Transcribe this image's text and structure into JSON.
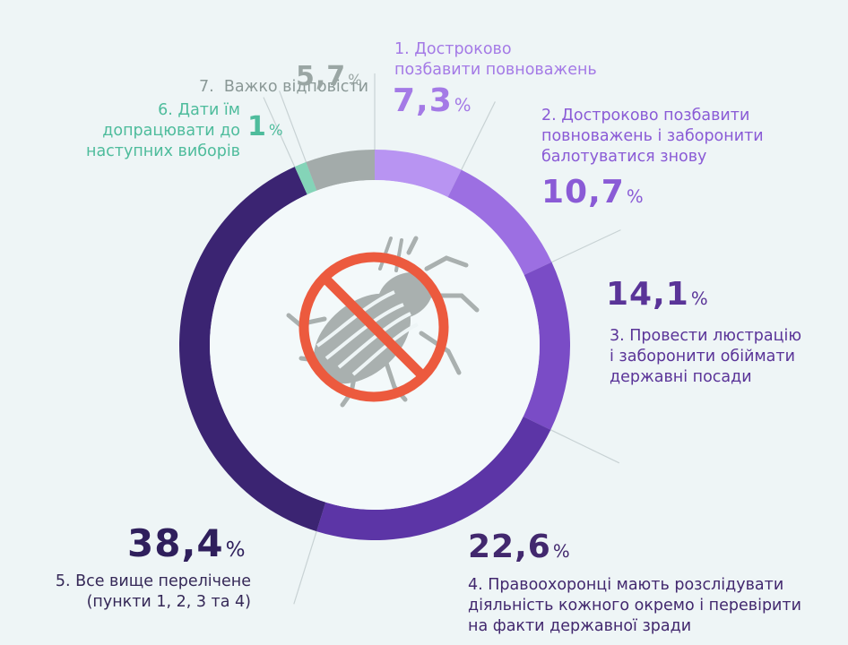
{
  "chart_data": {
    "type": "pie",
    "slices": [
      {
        "label_lines": [
          "1. Достроково",
          "позбавити повноважень"
        ],
        "value_text": "7,3",
        "value": 7.3,
        "color": "#b894f2",
        "label_color": "#a47ae6",
        "value_color": "#a47ae6"
      },
      {
        "label_lines": [
          "2. Достроково позбавити",
          "повноважень і заборонити",
          "балотуватися знову"
        ],
        "value_text": "10,7",
        "value": 10.7,
        "color": "#9c6fe2",
        "label_color": "#8a5bd6",
        "value_color": "#8a5bd6"
      },
      {
        "label_lines": [
          "3. Провести люстрацію",
          "і заборонити обіймати",
          "державні посади"
        ],
        "value_text": "14,1",
        "value": 14.1,
        "color": "#7a4cc6",
        "label_color": "#5a3498",
        "value_color": "#5a3498"
      },
      {
        "label_lines": [
          "4. Правоохоронці мають розслідувати",
          "діяльність кожного окремо і перевірити",
          "на факти державної зради"
        ],
        "value_text": "22,6",
        "value": 22.6,
        "color": "#5c35a6",
        "label_color": "#42286e",
        "value_color": "#42286e"
      },
      {
        "label_lines": [
          "5. Все вище перелічене",
          "(пункти 1, 2, 3 та 4)"
        ],
        "value_text": "38,4",
        "value": 38.4,
        "color": "#3b2472",
        "label_color": "#352857",
        "value_color": "#2f1f5c"
      },
      {
        "label_lines": [
          "6. Дати їм",
          "допрацювати до",
          "наступних виборів"
        ],
        "value_text": "1",
        "value": 1.0,
        "color": "#84d4b8",
        "label_color": "#4ebc9c",
        "value_color": "#4ebc9c"
      },
      {
        "label_lines": [
          "7.  Важко відповісти"
        ],
        "value_text": "5,7",
        "value": 5.7,
        "color": "#a3abaa",
        "label_color": "#8a9896",
        "value_color": "#9aa6a4"
      }
    ],
    "percent_symbol": "%"
  },
  "center_icon": "crossed-out-colorado-beetle-icon",
  "colors": {
    "background": "#eef5f6",
    "inner_disc": "#f3f9fa",
    "prohibition": "#ec5a3e",
    "beetle": "#a9b0af"
  }
}
